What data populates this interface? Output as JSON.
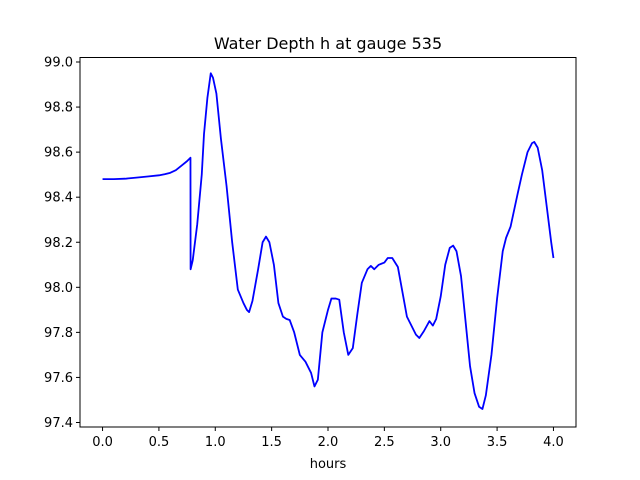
{
  "chart_data": {
    "type": "line",
    "title": "Water Depth h at gauge 535",
    "xlabel": "hours",
    "ylabel": "",
    "xlim": [
      -0.2,
      4.2
    ],
    "ylim": [
      97.38,
      99.02
    ],
    "grid": false,
    "x_ticks": [
      0.0,
      0.5,
      1.0,
      1.5,
      2.0,
      2.5,
      3.0,
      3.5,
      4.0
    ],
    "x_tick_labels": [
      "0.0",
      "0.5",
      "1.0",
      "1.5",
      "2.0",
      "2.5",
      "3.0",
      "3.5",
      "4.0"
    ],
    "y_ticks": [
      97.4,
      97.6,
      97.8,
      98.0,
      98.2,
      98.4,
      98.6,
      98.8,
      99.0
    ],
    "y_tick_labels": [
      "97.4",
      "97.6",
      "97.8",
      "98.0",
      "98.2",
      "98.4",
      "98.6",
      "98.8",
      "99.0"
    ],
    "series": [
      {
        "color": "#0000ff",
        "points": [
          [
            0.0,
            98.48
          ],
          [
            0.1,
            98.48
          ],
          [
            0.2,
            98.482
          ],
          [
            0.3,
            98.487
          ],
          [
            0.4,
            98.492
          ],
          [
            0.5,
            98.497
          ],
          [
            0.55,
            98.502
          ],
          [
            0.6,
            98.508
          ],
          [
            0.65,
            98.52
          ],
          [
            0.7,
            98.54
          ],
          [
            0.75,
            98.56
          ],
          [
            0.78,
            98.575
          ],
          [
            0.781,
            98.08
          ],
          [
            0.8,
            98.12
          ],
          [
            0.84,
            98.28
          ],
          [
            0.88,
            98.5
          ],
          [
            0.9,
            98.68
          ],
          [
            0.93,
            98.84
          ],
          [
            0.96,
            98.95
          ],
          [
            0.98,
            98.93
          ],
          [
            1.01,
            98.86
          ],
          [
            1.05,
            98.66
          ],
          [
            1.1,
            98.45
          ],
          [
            1.15,
            98.2
          ],
          [
            1.2,
            97.99
          ],
          [
            1.25,
            97.93
          ],
          [
            1.28,
            97.9
          ],
          [
            1.3,
            97.89
          ],
          [
            1.33,
            97.94
          ],
          [
            1.38,
            98.08
          ],
          [
            1.42,
            98.2
          ],
          [
            1.45,
            98.225
          ],
          [
            1.48,
            98.2
          ],
          [
            1.52,
            98.1
          ],
          [
            1.56,
            97.93
          ],
          [
            1.6,
            97.87
          ],
          [
            1.63,
            97.86
          ],
          [
            1.66,
            97.855
          ],
          [
            1.7,
            97.8
          ],
          [
            1.75,
            97.7
          ],
          [
            1.8,
            97.67
          ],
          [
            1.85,
            97.62
          ],
          [
            1.88,
            97.56
          ],
          [
            1.91,
            97.59
          ],
          [
            1.95,
            97.8
          ],
          [
            2.0,
            97.9
          ],
          [
            2.03,
            97.95
          ],
          [
            2.07,
            97.95
          ],
          [
            2.1,
            97.945
          ],
          [
            2.14,
            97.8
          ],
          [
            2.18,
            97.7
          ],
          [
            2.22,
            97.73
          ],
          [
            2.26,
            97.88
          ],
          [
            2.3,
            98.02
          ],
          [
            2.35,
            98.08
          ],
          [
            2.38,
            98.095
          ],
          [
            2.41,
            98.08
          ],
          [
            2.45,
            98.1
          ],
          [
            2.5,
            98.11
          ],
          [
            2.53,
            98.13
          ],
          [
            2.57,
            98.13
          ],
          [
            2.62,
            98.09
          ],
          [
            2.66,
            97.98
          ],
          [
            2.7,
            97.87
          ],
          [
            2.74,
            97.83
          ],
          [
            2.78,
            97.79
          ],
          [
            2.81,
            97.775
          ],
          [
            2.85,
            97.805
          ],
          [
            2.9,
            97.85
          ],
          [
            2.93,
            97.83
          ],
          [
            2.96,
            97.86
          ],
          [
            3.0,
            97.96
          ],
          [
            3.04,
            98.1
          ],
          [
            3.08,
            98.175
          ],
          [
            3.11,
            98.185
          ],
          [
            3.14,
            98.16
          ],
          [
            3.18,
            98.05
          ],
          [
            3.22,
            97.85
          ],
          [
            3.26,
            97.65
          ],
          [
            3.3,
            97.53
          ],
          [
            3.34,
            97.47
          ],
          [
            3.37,
            97.46
          ],
          [
            3.4,
            97.52
          ],
          [
            3.45,
            97.7
          ],
          [
            3.5,
            97.95
          ],
          [
            3.55,
            98.16
          ],
          [
            3.58,
            98.22
          ],
          [
            3.62,
            98.27
          ],
          [
            3.68,
            98.41
          ],
          [
            3.72,
            98.5
          ],
          [
            3.77,
            98.6
          ],
          [
            3.81,
            98.64
          ],
          [
            3.83,
            98.645
          ],
          [
            3.86,
            98.62
          ],
          [
            3.9,
            98.52
          ],
          [
            3.94,
            98.36
          ],
          [
            3.98,
            98.2
          ],
          [
            4.0,
            98.13
          ]
        ]
      }
    ]
  }
}
